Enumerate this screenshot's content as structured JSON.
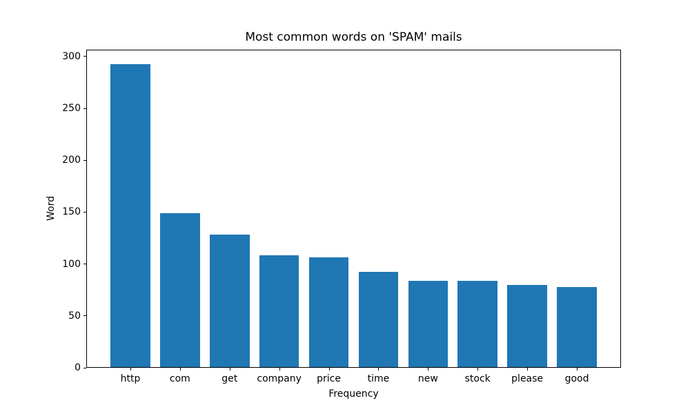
{
  "chart_data": {
    "type": "bar",
    "title": "Most common words on 'SPAM' mails",
    "xlabel": "Frequency",
    "ylabel": "Word",
    "categories": [
      "http",
      "com",
      "get",
      "company",
      "price",
      "time",
      "new",
      "stock",
      "please",
      "good"
    ],
    "values": [
      292,
      148,
      128,
      108,
      106,
      92,
      83,
      83,
      79,
      77
    ],
    "yticks": [
      0,
      50,
      100,
      150,
      200,
      250,
      300
    ],
    "ylim": [
      0,
      306.6
    ],
    "xlim": [
      -0.89,
      9.89
    ],
    "bar_width_data_units": 0.8,
    "bar_color": "#1f77b4",
    "background_color": "#ffffff",
    "grid": false,
    "legend": "none"
  }
}
